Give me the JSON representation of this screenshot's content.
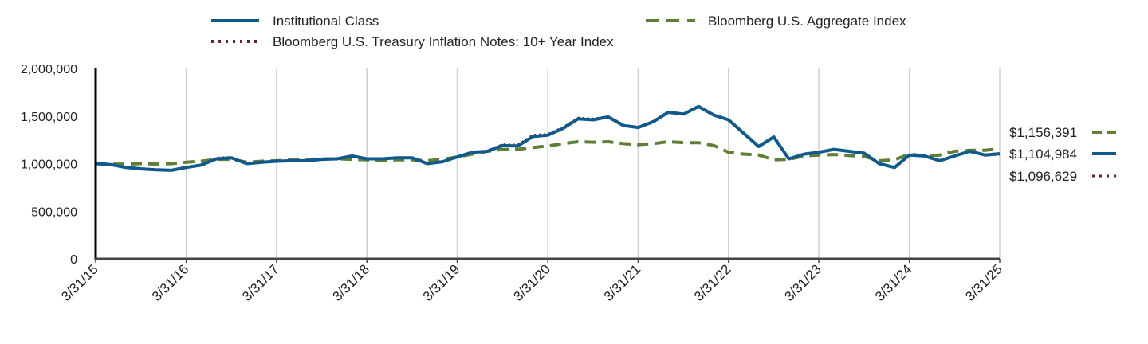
{
  "chart_data": {
    "type": "line",
    "title": "",
    "xlabel": "",
    "ylabel": "",
    "ylim": [
      0,
      2000000
    ],
    "y_ticks": [
      "0",
      "500,000",
      "1,000,000",
      "1,500,000",
      "2,000,000"
    ],
    "x_ticks": [
      "3/31/15",
      "3/31/16",
      "3/31/17",
      "3/31/18",
      "3/31/19",
      "3/31/20",
      "3/31/21",
      "3/31/22",
      "3/31/23",
      "3/31/24",
      "3/31/25"
    ],
    "grid": "vertical",
    "legend_placement": "top",
    "x_dates": [
      "2015-03-31",
      "2015-05-31",
      "2015-07-31",
      "2015-09-30",
      "2015-11-30",
      "2016-01-31",
      "2016-03-31",
      "2016-05-31",
      "2016-07-31",
      "2016-09-30",
      "2016-11-30",
      "2017-01-31",
      "2017-03-31",
      "2017-05-31",
      "2017-07-31",
      "2017-09-30",
      "2017-11-30",
      "2018-01-31",
      "2018-03-31",
      "2018-05-31",
      "2018-07-31",
      "2018-09-30",
      "2018-11-30",
      "2019-01-31",
      "2019-03-31",
      "2019-05-31",
      "2019-07-31",
      "2019-09-30",
      "2019-11-30",
      "2020-01-31",
      "2020-03-31",
      "2020-05-31",
      "2020-07-31",
      "2020-09-30",
      "2020-11-30",
      "2021-01-31",
      "2021-03-31",
      "2021-05-31",
      "2021-07-31",
      "2021-09-30",
      "2021-11-30",
      "2022-01-31",
      "2022-03-31",
      "2022-05-31",
      "2022-07-31",
      "2022-09-30",
      "2022-11-30",
      "2023-01-31",
      "2023-03-31",
      "2023-05-31",
      "2023-07-31",
      "2023-09-30",
      "2023-11-30",
      "2024-01-31",
      "2024-03-31",
      "2024-05-31",
      "2024-07-31",
      "2024-09-30",
      "2024-11-30",
      "2025-01-31",
      "2025-03-31"
    ],
    "series": [
      {
        "name": "Institutional Class",
        "color": "#0f5a8c",
        "style": "solid",
        "end_label": "$1,104,984",
        "values": [
          1000000,
          990000,
          960000,
          945000,
          935000,
          930000,
          960000,
          985000,
          1050000,
          1060000,
          1000000,
          1015000,
          1025000,
          1030000,
          1030000,
          1045000,
          1050000,
          1080000,
          1050000,
          1050000,
          1060000,
          1060000,
          1000000,
          1020000,
          1070000,
          1120000,
          1130000,
          1190000,
          1185000,
          1285000,
          1300000,
          1370000,
          1470000,
          1460000,
          1490000,
          1400000,
          1380000,
          1440000,
          1540000,
          1520000,
          1600000,
          1510000,
          1460000,
          1320000,
          1180000,
          1280000,
          1050000,
          1100000,
          1120000,
          1150000,
          1130000,
          1110000,
          1000000,
          960000,
          1090000,
          1080000,
          1030000,
          1080000,
          1130000,
          1090000,
          1104984
        ]
      },
      {
        "name": "Bloomberg U.S. Aggregate Index",
        "color": "#5e7f35",
        "style": "dashed",
        "end_label": "$1,156,391",
        "values": [
          1000000,
          995000,
          995000,
          1000000,
          995000,
          1000000,
          1015000,
          1025000,
          1045000,
          1045000,
          1015000,
          1025000,
          1030000,
          1040000,
          1045000,
          1050000,
          1050000,
          1045000,
          1040000,
          1035000,
          1040000,
          1040000,
          1030000,
          1045000,
          1070000,
          1100000,
          1130000,
          1150000,
          1150000,
          1170000,
          1185000,
          1210000,
          1230000,
          1225000,
          1230000,
          1210000,
          1200000,
          1210000,
          1230000,
          1220000,
          1220000,
          1190000,
          1120000,
          1100000,
          1090000,
          1040000,
          1045000,
          1080000,
          1090000,
          1095000,
          1085000,
          1075000,
          1030000,
          1040000,
          1100000,
          1080000,
          1090000,
          1130000,
          1140000,
          1140000,
          1156391
        ]
      },
      {
        "name": "Bloomberg U.S. Treasury Inflation Notes: 10+ Year Index",
        "color": "#6b1d3a",
        "style": "dotted",
        "end_label": "$1,096,629",
        "values": [
          1000000,
          990000,
          965000,
          950000,
          940000,
          935000,
          965000,
          990000,
          1060000,
          1065000,
          1005000,
          1018000,
          1028000,
          1032000,
          1033000,
          1048000,
          1052000,
          1082000,
          1053000,
          1052000,
          1063000,
          1062000,
          1002000,
          1022000,
          1073000,
          1125000,
          1135000,
          1200000,
          1195000,
          1300000,
          1310000,
          1380000,
          1480000,
          1470000,
          1495000,
          1405000,
          1385000,
          1445000,
          1545000,
          1525000,
          1605000,
          1512000,
          1462000,
          1322000,
          1182000,
          1278000,
          1050000,
          1098000,
          1118000,
          1148000,
          1128000,
          1108000,
          998000,
          958000,
          1088000,
          1078000,
          1028000,
          1077000,
          1127000,
          1087000,
          1096629
        ]
      }
    ]
  },
  "legend": {
    "items": [
      {
        "label": "Institutional Class",
        "color": "#0f5a8c",
        "style": "solid"
      },
      {
        "label": "Bloomberg U.S. Aggregate Index",
        "color": "#5e7f35",
        "style": "dashed"
      },
      {
        "label": "Bloomberg U.S. Treasury Inflation Notes: 10+ Year Index",
        "color": "#6b1d3a",
        "style": "dotted"
      }
    ]
  }
}
